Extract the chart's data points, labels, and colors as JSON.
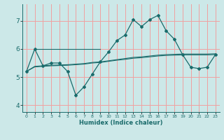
{
  "xlabel": "Humidex (Indice chaleur)",
  "bg_color": "#cce8e8",
  "grid_color": "#f0a0a0",
  "line_color": "#1a6b6b",
  "xlim": [
    -0.5,
    23.5
  ],
  "ylim": [
    3.75,
    7.6
  ],
  "yticks": [
    4,
    5,
    6,
    7
  ],
  "xticks": [
    0,
    1,
    2,
    3,
    4,
    5,
    6,
    7,
    8,
    9,
    10,
    11,
    12,
    13,
    14,
    15,
    16,
    17,
    18,
    19,
    20,
    21,
    22,
    23
  ],
  "line1_x": [
    0,
    1,
    2,
    3,
    4,
    5,
    6,
    7,
    8,
    9,
    10,
    11,
    12,
    13,
    14,
    15,
    16,
    17,
    18,
    19,
    20,
    21,
    22,
    23
  ],
  "line1_y": [
    5.2,
    6.0,
    5.4,
    5.5,
    5.5,
    5.2,
    4.35,
    4.65,
    5.1,
    5.55,
    5.9,
    6.3,
    6.5,
    7.05,
    6.8,
    7.05,
    7.2,
    6.65,
    6.35,
    5.8,
    5.35,
    5.3,
    5.35,
    5.8
  ],
  "line2_x": [
    0,
    1,
    2,
    3,
    4,
    5,
    6,
    7,
    8,
    9,
    10,
    11,
    12,
    13,
    14,
    15,
    16,
    17,
    18,
    19,
    20,
    21,
    22,
    23
  ],
  "line2_y": [
    5.2,
    5.38,
    5.4,
    5.42,
    5.43,
    5.44,
    5.46,
    5.48,
    5.52,
    5.54,
    5.58,
    5.62,
    5.66,
    5.7,
    5.72,
    5.75,
    5.78,
    5.8,
    5.81,
    5.82,
    5.82,
    5.82,
    5.82,
    5.83
  ],
  "line3_x": [
    1,
    9
  ],
  "line3_y": [
    6.0,
    6.0
  ],
  "line4_x": [
    0,
    1,
    2,
    3,
    4,
    5,
    6,
    7,
    8,
    9,
    10,
    11,
    12,
    13,
    14,
    15,
    16,
    17,
    18,
    19,
    20,
    21,
    22,
    23
  ],
  "line4_y": [
    5.2,
    5.36,
    5.38,
    5.4,
    5.41,
    5.42,
    5.44,
    5.46,
    5.5,
    5.52,
    5.56,
    5.6,
    5.63,
    5.67,
    5.69,
    5.72,
    5.75,
    5.77,
    5.78,
    5.79,
    5.79,
    5.79,
    5.79,
    5.8
  ]
}
